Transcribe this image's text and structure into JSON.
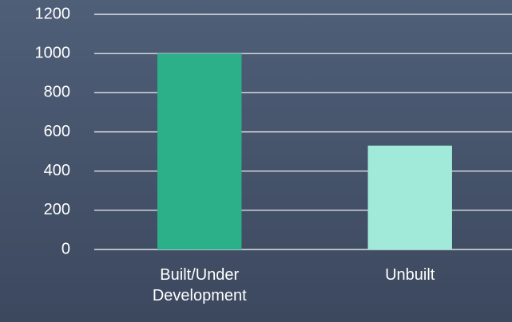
{
  "chart_data": {
    "type": "bar",
    "categories": [
      "Built/Under Development",
      "Unbuilt"
    ],
    "values": [
      1000,
      530
    ],
    "colors": [
      "#2bb08a",
      "#a1e9d8"
    ],
    "ylim": [
      0,
      1200
    ],
    "yticks": [
      0,
      200,
      400,
      600,
      800,
      1000,
      1200
    ],
    "grid": true
  }
}
